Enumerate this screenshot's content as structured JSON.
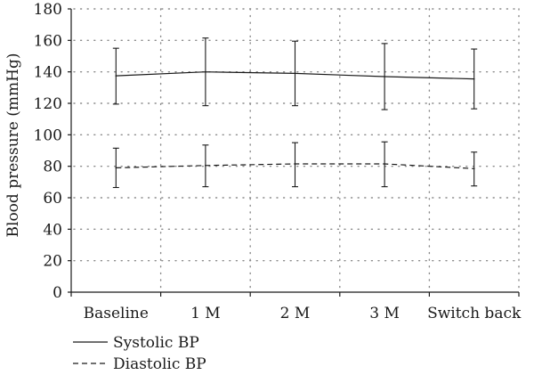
{
  "chart_data": {
    "type": "line",
    "title": "",
    "xlabel": "",
    "ylabel": "Blood pressure (mmHg)",
    "ylim": [
      0,
      180
    ],
    "yticks": [
      "0",
      "20",
      "40",
      "60",
      "80",
      "100",
      "120",
      "140",
      "160",
      "180"
    ],
    "grid": "horizontal dotted",
    "legend_position": "bottom-left",
    "categories": [
      "Baseline",
      "1 M",
      "2 M",
      "3 M",
      "Switch back"
    ],
    "series": [
      {
        "name": "Systolic BP",
        "line_style": "solid",
        "values": [
          137.5,
          140,
          139,
          137,
          135.5
        ],
        "error_low": [
          119.5,
          118.5,
          118.5,
          116,
          116.5
        ],
        "error_high": [
          155,
          161.5,
          159.5,
          158,
          154.5
        ]
      },
      {
        "name": "Diastolic BP",
        "line_style": "dashed",
        "values": [
          79,
          80.5,
          81.5,
          81.5,
          78.5
        ],
        "error_low": [
          66.5,
          67,
          67,
          67,
          67.5
        ],
        "error_high": [
          91.5,
          93.5,
          95,
          95.5,
          89
        ]
      }
    ],
    "colors": {
      "ink": "#1a1a1a",
      "grid": "#8a8a8a"
    }
  }
}
